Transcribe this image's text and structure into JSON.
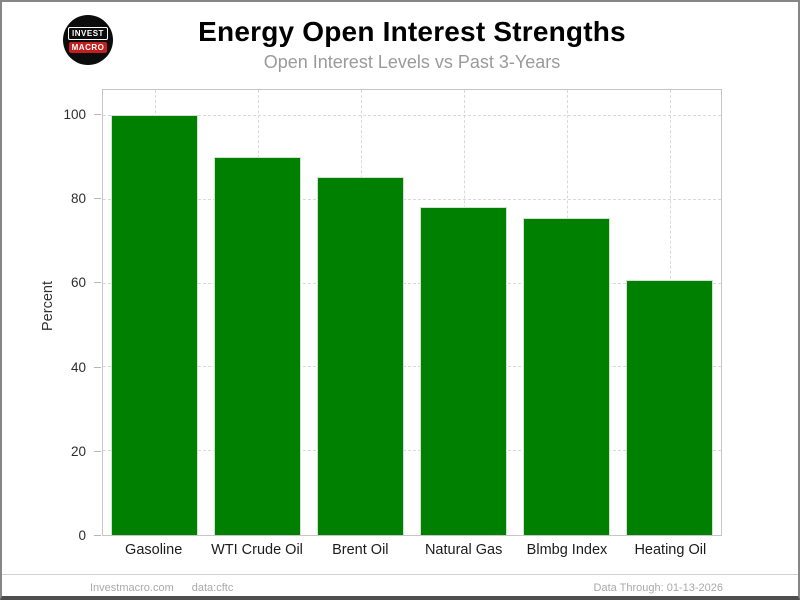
{
  "branding": {
    "logo": {
      "line1": "INVEST",
      "line2": "MACRO"
    }
  },
  "header": {
    "title": "Energy Open Interest Strengths",
    "subtitle": "Open Interest Levels vs Past 3-Years"
  },
  "chart_data": {
    "type": "bar",
    "title": "Energy Open Interest Strengths",
    "subtitle": "Open Interest Levels vs Past 3-Years",
    "categories": [
      "Gasoline",
      "WTI Crude Oil",
      "Brent Oil",
      "Natural Gas",
      "Blmbg Index",
      "Heating Oil"
    ],
    "values": [
      100.3,
      90.3,
      85.5,
      78.4,
      75.7,
      60.8
    ],
    "xlabel": "",
    "ylabel": "Percent",
    "yticks": [
      0,
      20,
      40,
      60,
      80,
      100
    ],
    "ylim": [
      0,
      106.2
    ],
    "grid": "dashed horizontal at y-ticks and dashed vertical at bar centers",
    "legend": "none",
    "bar_color": "#008000"
  },
  "footer": {
    "site": "Investmacro.com",
    "source": "data:cftc",
    "data_through": "Data Through: 01-13-2026"
  },
  "colors": {
    "bar": "#008000",
    "grid": "#d9d9d9",
    "plot_border": "#c6c6c6",
    "subtitle_text": "#9a9a9a",
    "axis_text": "#2e2e2e",
    "footer_text": "#a9a9a9",
    "frame_border": "#868686",
    "logo_background": "#0c0c0c",
    "logo_red": "#c41e1e"
  }
}
